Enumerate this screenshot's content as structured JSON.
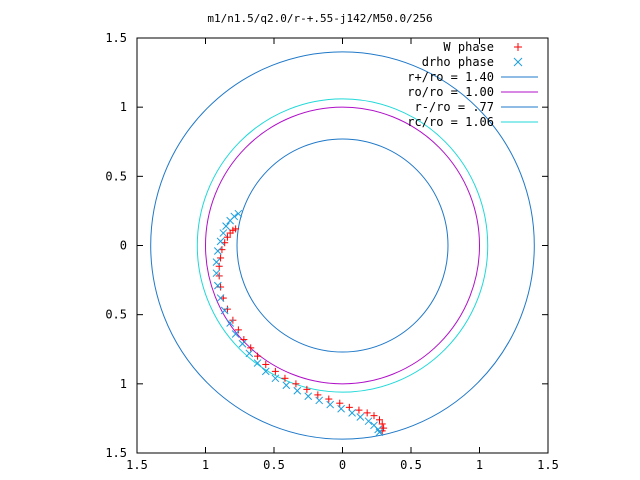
{
  "chart_data": {
    "type": "scatter",
    "title": "m1/n1.5/q2.0/r-+.55-j142/M50.0/256",
    "xlim": [
      -1.5,
      1.5
    ],
    "ylim": [
      -1.5,
      1.5
    ],
    "x_tick_labels": [
      "1.5",
      "1",
      "0.5",
      "0",
      "0.5",
      "1",
      "1.5"
    ],
    "y_tick_labels": [
      "1.5",
      "1",
      "0.5",
      "0",
      "0.5",
      "1",
      "1.5"
    ],
    "tick_values": [
      -1.5,
      -1,
      -0.5,
      0,
      0.5,
      1,
      1.5
    ],
    "grid": false,
    "legend_position": "top-right",
    "series": [
      {
        "name": "W phase",
        "kind": "points",
        "marker": "plus",
        "color": "#ff0000",
        "points": [
          [
            -0.78,
            0.12
          ],
          [
            -0.8,
            0.11
          ],
          [
            -0.82,
            0.09
          ],
          [
            -0.84,
            0.06
          ],
          [
            -0.86,
            0.02
          ],
          [
            -0.88,
            -0.03
          ],
          [
            -0.89,
            -0.09
          ],
          [
            -0.9,
            -0.15
          ],
          [
            -0.9,
            -0.22
          ],
          [
            -0.89,
            -0.3
          ],
          [
            -0.87,
            -0.38
          ],
          [
            -0.84,
            -0.46
          ],
          [
            -0.8,
            -0.54
          ],
          [
            -0.76,
            -0.61
          ],
          [
            -0.72,
            -0.68
          ],
          [
            -0.67,
            -0.74
          ],
          [
            -0.62,
            -0.8
          ],
          [
            -0.56,
            -0.86
          ],
          [
            -0.49,
            -0.91
          ],
          [
            -0.42,
            -0.96
          ],
          [
            -0.34,
            -1.0
          ],
          [
            -0.26,
            -1.04
          ],
          [
            -0.18,
            -1.08
          ],
          [
            -0.1,
            -1.11
          ],
          [
            -0.02,
            -1.14
          ],
          [
            0.05,
            -1.17
          ],
          [
            0.12,
            -1.19
          ],
          [
            0.18,
            -1.21
          ],
          [
            0.23,
            -1.23
          ],
          [
            0.27,
            -1.26
          ],
          [
            0.29,
            -1.29
          ],
          [
            0.3,
            -1.32
          ],
          [
            0.29,
            -1.34
          ]
        ]
      },
      {
        "name": "drho phase",
        "kind": "points",
        "marker": "cross",
        "color": "#1a9fe0",
        "points": [
          [
            -0.76,
            0.23
          ],
          [
            -0.79,
            0.21
          ],
          [
            -0.82,
            0.18
          ],
          [
            -0.85,
            0.14
          ],
          [
            -0.87,
            0.09
          ],
          [
            -0.89,
            0.03
          ],
          [
            -0.91,
            -0.04
          ],
          [
            -0.92,
            -0.12
          ],
          [
            -0.92,
            -0.2
          ],
          [
            -0.91,
            -0.29
          ],
          [
            -0.89,
            -0.38
          ],
          [
            -0.86,
            -0.47
          ],
          [
            -0.82,
            -0.56
          ],
          [
            -0.78,
            -0.64
          ],
          [
            -0.73,
            -0.71
          ],
          [
            -0.68,
            -0.78
          ],
          [
            -0.62,
            -0.85
          ],
          [
            -0.56,
            -0.91
          ],
          [
            -0.49,
            -0.96
          ],
          [
            -0.41,
            -1.01
          ],
          [
            -0.33,
            -1.05
          ],
          [
            -0.25,
            -1.09
          ],
          [
            -0.17,
            -1.12
          ],
          [
            -0.09,
            -1.15
          ],
          [
            -0.01,
            -1.18
          ],
          [
            0.07,
            -1.21
          ],
          [
            0.13,
            -1.24
          ],
          [
            0.19,
            -1.27
          ],
          [
            0.23,
            -1.3
          ],
          [
            0.26,
            -1.33
          ],
          [
            0.27,
            -1.35
          ]
        ]
      },
      {
        "name": "r+/ro = 1.40",
        "kind": "circle",
        "radius": 1.4,
        "color": "#1f78c8"
      },
      {
        "name": "ro/ro = 1.00",
        "kind": "circle",
        "radius": 1.0,
        "color": "#b010c8"
      },
      {
        "name": "r-/ro = .77",
        "kind": "circle",
        "radius": 0.77,
        "color": "#1f78c8"
      },
      {
        "name": "rc/ro = 1.06",
        "kind": "circle",
        "radius": 1.06,
        "color": "#20d8d8"
      }
    ]
  }
}
